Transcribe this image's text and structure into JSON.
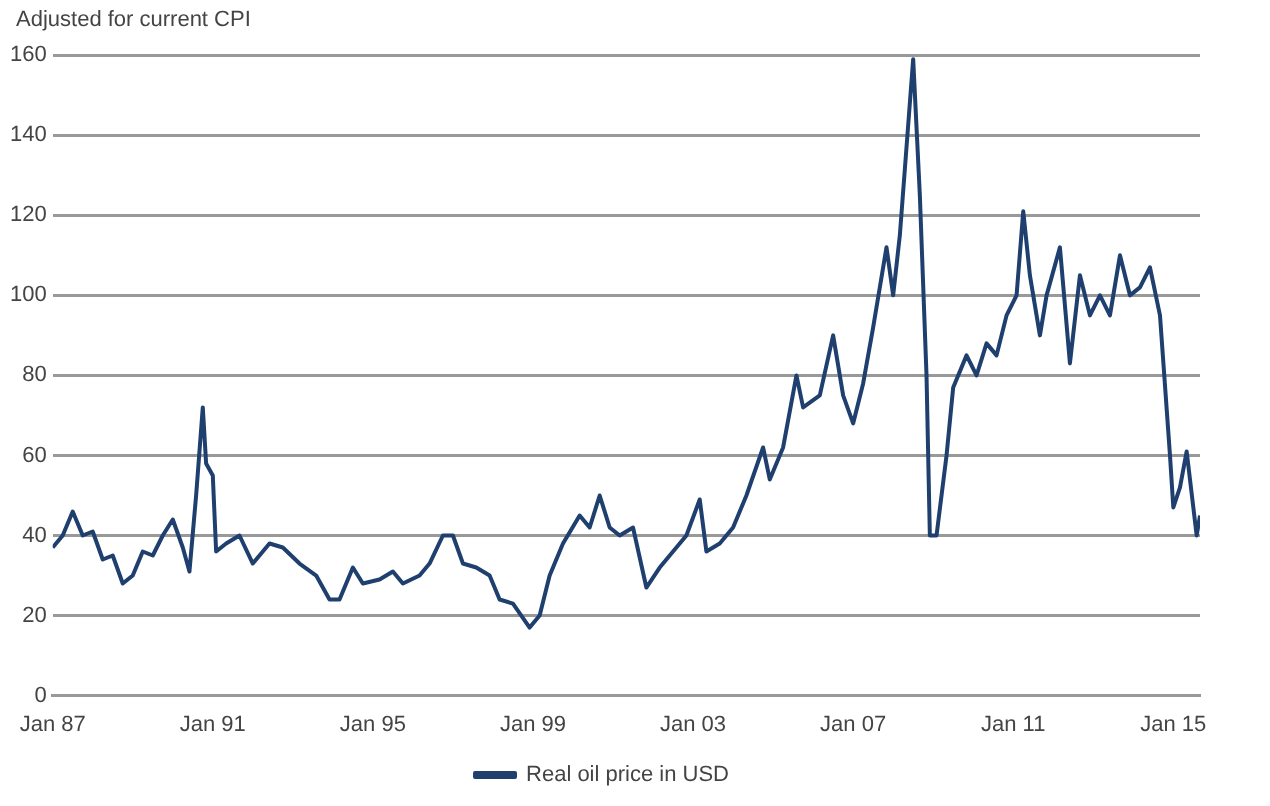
{
  "chart_data": {
    "type": "line",
    "ylabel": "Adjusted for current CPI",
    "x": [
      "1987-01",
      "1987-04",
      "1987-07",
      "1987-10",
      "1988-01",
      "1988-04",
      "1988-07",
      "1988-10",
      "1989-01",
      "1989-04",
      "1989-07",
      "1989-10",
      "1990-01",
      "1990-04",
      "1990-06",
      "1990-08",
      "1990-10",
      "1990-11",
      "1991-01",
      "1991-02",
      "1991-05",
      "1991-09",
      "1992-01",
      "1992-06",
      "1992-10",
      "1993-03",
      "1993-08",
      "1993-12",
      "1994-03",
      "1994-07",
      "1994-10",
      "1995-03",
      "1995-07",
      "1995-10",
      "1996-03",
      "1996-06",
      "1996-10",
      "1997-01",
      "1997-04",
      "1997-08",
      "1997-12",
      "1998-03",
      "1998-07",
      "1998-12",
      "1999-03",
      "1999-06",
      "1999-10",
      "2000-03",
      "2000-06",
      "2000-09",
      "2000-12",
      "2001-03",
      "2001-07",
      "2001-11",
      "2002-03",
      "2002-07",
      "2002-11",
      "2003-03",
      "2003-05",
      "2003-09",
      "2004-01",
      "2004-05",
      "2004-10",
      "2004-12",
      "2005-04",
      "2005-08",
      "2005-10",
      "2006-03",
      "2006-07",
      "2006-10",
      "2007-01",
      "2007-04",
      "2007-07",
      "2007-11",
      "2008-01",
      "2008-03",
      "2008-07",
      "2008-09",
      "2008-11",
      "2008-12",
      "2009-02",
      "2009-05",
      "2009-07",
      "2009-11",
      "2010-02",
      "2010-05",
      "2010-08",
      "2010-11",
      "2011-02",
      "2011-04",
      "2011-06",
      "2011-09",
      "2011-11",
      "2012-03",
      "2012-06",
      "2012-09",
      "2012-12",
      "2013-03",
      "2013-06",
      "2013-09",
      "2013-12",
      "2014-03",
      "2014-06",
      "2014-09",
      "2014-12",
      "2015-01",
      "2015-03",
      "2015-05",
      "2015-07",
      "2015-08",
      "2015-09"
    ],
    "series": [
      {
        "name": "Real oil price in USD",
        "color": "#1f3f6e",
        "values": [
          37,
          40,
          46,
          40,
          41,
          34,
          35,
          28,
          30,
          36,
          35,
          40,
          44,
          37,
          31,
          50,
          72,
          58,
          55,
          36,
          38,
          40,
          33,
          38,
          37,
          33,
          30,
          24,
          24,
          32,
          28,
          29,
          31,
          28,
          30,
          33,
          40,
          40,
          33,
          32,
          30,
          24,
          23,
          17,
          20,
          30,
          38,
          45,
          42,
          50,
          42,
          40,
          42,
          27,
          32,
          36,
          40,
          49,
          36,
          38,
          42,
          50,
          62,
          54,
          62,
          80,
          72,
          75,
          90,
          75,
          68,
          78,
          92,
          112,
          100,
          115,
          159,
          125,
          80,
          40,
          40,
          60,
          77,
          85,
          80,
          88,
          85,
          95,
          100,
          121,
          105,
          90,
          100,
          112,
          83,
          105,
          95,
          100,
          95,
          110,
          100,
          102,
          107,
          95,
          60,
          47,
          52,
          61,
          47,
          40,
          45
        ]
      }
    ],
    "xlim": [
      "1987-01",
      "2015-09"
    ],
    "xticks": [
      {
        "value": "1987-01",
        "label": "Jan 87"
      },
      {
        "value": "1991-01",
        "label": "Jan 91"
      },
      {
        "value": "1995-01",
        "label": "Jan 95"
      },
      {
        "value": "1999-01",
        "label": "Jan 99"
      },
      {
        "value": "2003-01",
        "label": "Jan 03"
      },
      {
        "value": "2007-01",
        "label": "Jan 07"
      },
      {
        "value": "2011-01",
        "label": "Jan 11"
      },
      {
        "value": "2015-01",
        "label": "Jan 15"
      }
    ],
    "ylim": [
      0,
      160
    ],
    "yticks": [
      0,
      20,
      40,
      60,
      80,
      100,
      120,
      140,
      160
    ],
    "grid": "y",
    "legend": "bottom",
    "marker": "none",
    "line_style": "solid"
  }
}
